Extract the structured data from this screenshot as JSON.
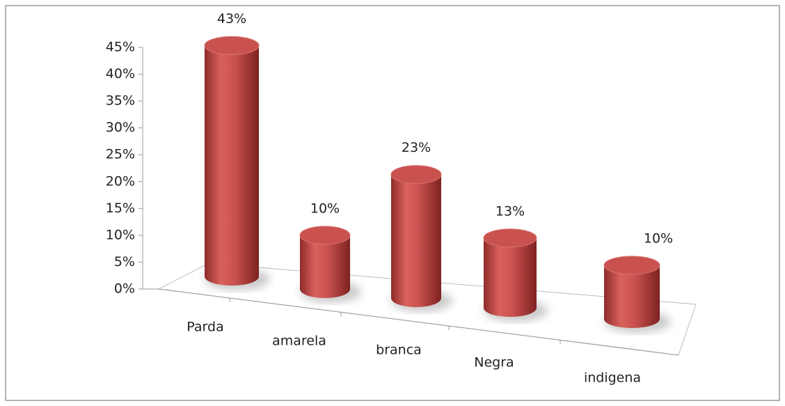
{
  "chart_data": {
    "type": "bar",
    "title": null,
    "categories": [
      "Parda",
      "amarela",
      "branca",
      "Negra",
      "indigena"
    ],
    "values": [
      43,
      10,
      23,
      13,
      10
    ],
    "value_labels": [
      "43%",
      "10%",
      "23%",
      "13%",
      "10%"
    ],
    "color": "#c0504d",
    "ylim": [
      0,
      45
    ],
    "yticks": [
      {
        "value": 0,
        "label": "0%"
      },
      {
        "value": 5,
        "label": "5%"
      },
      {
        "value": 10,
        "label": "10%"
      },
      {
        "value": 15,
        "label": "15%"
      },
      {
        "value": 20,
        "label": "20%"
      },
      {
        "value": 25,
        "label": "25%"
      },
      {
        "value": 30,
        "label": "30%"
      },
      {
        "value": 35,
        "label": "35%"
      },
      {
        "value": 40,
        "label": "40%"
      },
      {
        "value": 45,
        "label": "45%"
      }
    ]
  }
}
